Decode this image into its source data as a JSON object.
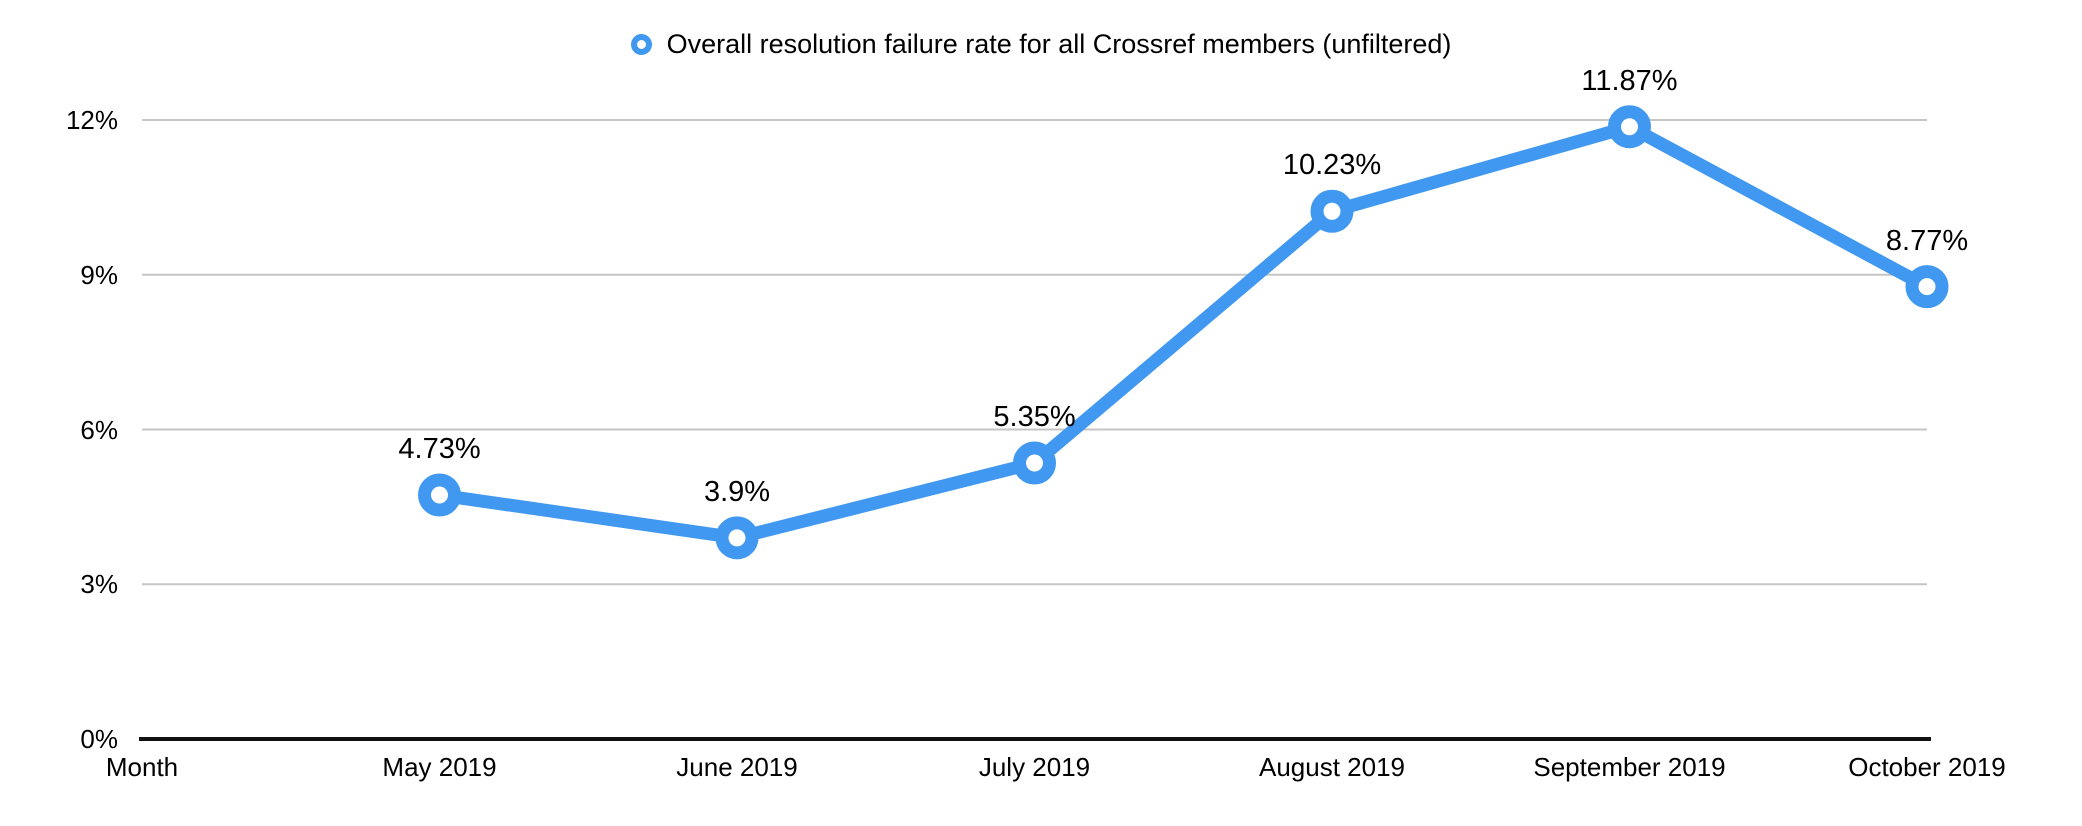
{
  "chart_data": {
    "type": "line",
    "title": "",
    "legend_label": "Overall resolution failure rate for all Crossref members (unfiltered)",
    "legend_position": "top-center",
    "xlabel": "Month",
    "categories": [
      "May 2019",
      "June 2019",
      "July 2019",
      "August 2019",
      "September 2019",
      "October 2019"
    ],
    "series": [
      {
        "name": "Overall resolution failure rate for all Crossref members (unfiltered)",
        "values": [
          4.73,
          3.9,
          5.35,
          10.23,
          11.87,
          8.77
        ],
        "point_labels": [
          "4.73%",
          "3.9%",
          "5.35%",
          "10.23%",
          "11.87%",
          "8.77%"
        ]
      }
    ],
    "ylim": [
      0,
      12
    ],
    "yticks": [
      0,
      3,
      6,
      9,
      12
    ],
    "ytick_labels": [
      "0%",
      "3%",
      "6%",
      "9%",
      "12%"
    ],
    "grid": true,
    "colors": {
      "line": "#4198F0",
      "marker_fill": "#FFFFFF",
      "grid": "#C6C6C6",
      "axis": "#111111",
      "text": "#000000"
    }
  }
}
